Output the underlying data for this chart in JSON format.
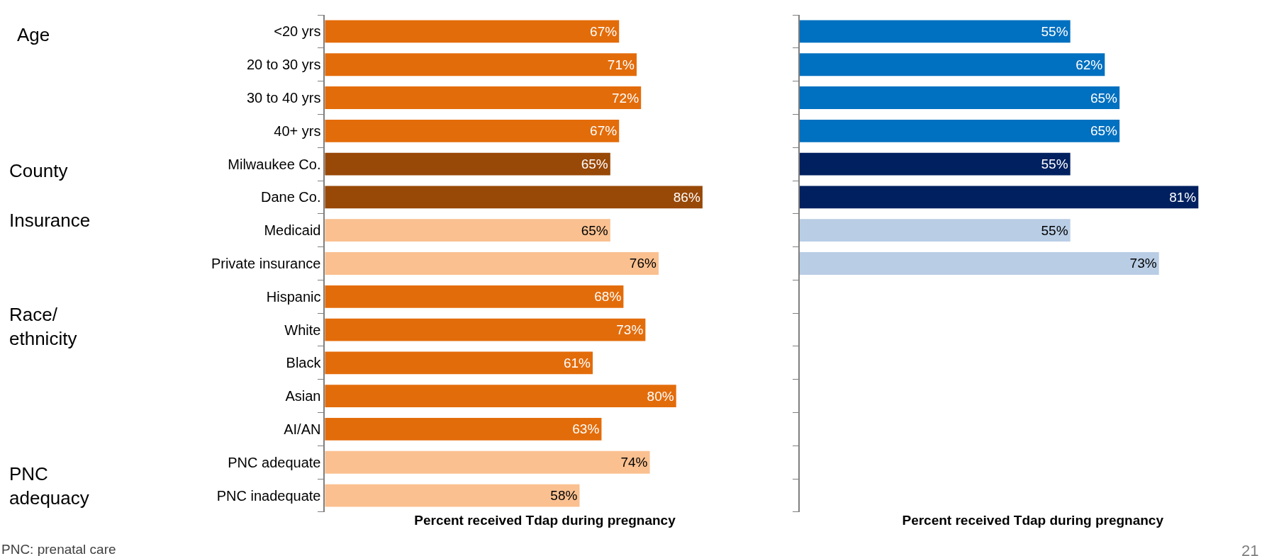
{
  "chart_data": [
    {
      "type": "bar",
      "orientation": "horizontal",
      "xlabel": "Percent received Tdap during pregnancy",
      "tick_labels": "y",
      "value_labels": [
        "67%",
        "71%",
        "72%",
        "67%",
        "65%",
        "86%",
        "65%",
        "76%",
        "68%",
        "73%",
        "61%",
        "80%",
        "63%",
        "74%",
        "58%"
      ],
      "categories": [
        "<20 yrs",
        "20 to 30 yrs",
        "30 to 40 yrs",
        "40+ yrs",
        "Milwaukee Co.",
        "Dane Co.",
        "Medicaid",
        "Private insurance",
        "Hispanic",
        "White",
        "Black",
        "Asian",
        "AI/AN",
        "PNC adequate",
        "PNC inadequate"
      ],
      "values": [
        67,
        71,
        72,
        67,
        65,
        86,
        65,
        76,
        68,
        73,
        61,
        80,
        63,
        74,
        58
      ],
      "colors": [
        "#e36c0a",
        "#e36c0a",
        "#e36c0a",
        "#e36c0a",
        "#984807",
        "#984807",
        "#fac090",
        "#fac090",
        "#e36c0a",
        "#e36c0a",
        "#e36c0a",
        "#e36c0a",
        "#e36c0a",
        "#fac090",
        "#fac090"
      ],
      "annotations": [
        "Age",
        "County",
        "Insurance",
        "Race/ ethnicity",
        "PNC adequacy",
        "PNC: prenatal care"
      ]
    },
    {
      "type": "bar",
      "orientation": "horizontal",
      "xlabel": "Percent received Tdap during pregnancy",
      "tick_labels": false,
      "value_labels": [
        "55%",
        "62%",
        "65%",
        "65%",
        "55%",
        "81%",
        "55%",
        "73%",
        null,
        null,
        null,
        null,
        null,
        null,
        null
      ],
      "categories": [
        null,
        null,
        null,
        null,
        null,
        null,
        null,
        null,
        null,
        null,
        null,
        null,
        null,
        null,
        null
      ],
      "values": [
        55,
        62,
        65,
        65,
        55,
        81,
        55,
        73,
        null,
        null,
        null,
        null,
        null,
        null,
        null
      ],
      "colors": [
        "#0070c0",
        "#0070c0",
        "#0070c0",
        "#0070c0",
        "#002060",
        "#002060",
        "#b9cde5",
        "#b9cde5",
        null,
        null,
        null,
        null,
        null,
        null,
        null
      ],
      "annotations": [
        "21"
      ]
    }
  ]
}
